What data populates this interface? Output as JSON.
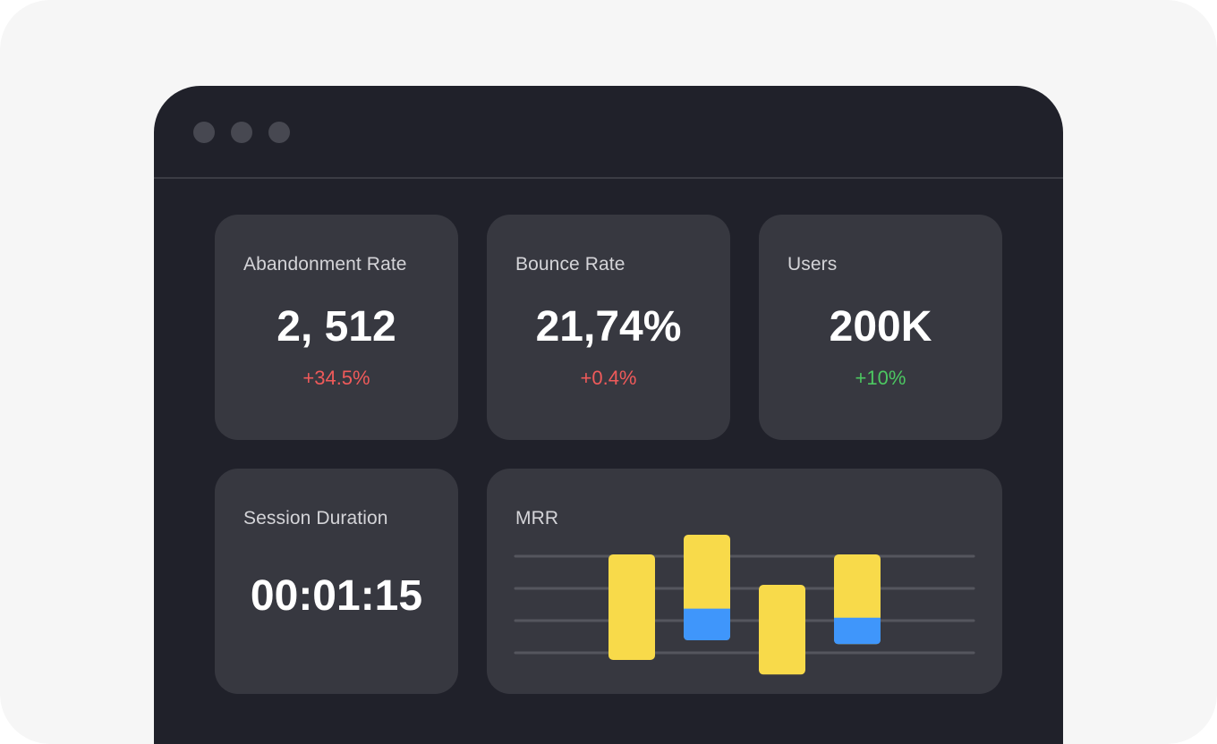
{
  "window": {
    "controls": [
      "window-dot",
      "window-dot",
      "window-dot"
    ]
  },
  "metrics": [
    {
      "title": "Abandonment Rate",
      "value": "2, 512",
      "delta": "+34.5%",
      "delta_color": "#ef5a5a"
    },
    {
      "title": "Bounce Rate",
      "value": "21,74%",
      "delta": "+0.4%",
      "delta_color": "#ef5a5a"
    },
    {
      "title": "Users",
      "value": "200K",
      "delta": "+10%",
      "delta_color": "#4cc761"
    }
  ],
  "session": {
    "title": "Session Duration",
    "value": "00:01:15"
  },
  "mrr": {
    "title": "MRR"
  },
  "colors": {
    "bar_primary": "#f8da4a",
    "bar_secondary": "#3f96fb",
    "gridline": "#55565e"
  },
  "chart_data": {
    "type": "bar",
    "title": "MRR",
    "categories": [
      "",
      "",
      "",
      ""
    ],
    "series": [
      {
        "values": [
          1.0,
          0.7,
          0.85,
          0.6
        ]
      },
      {
        "values": [
          0,
          0.3,
          0,
          0.25
        ]
      }
    ],
    "stacked": true,
    "grid": true,
    "gridlines": 4
  }
}
